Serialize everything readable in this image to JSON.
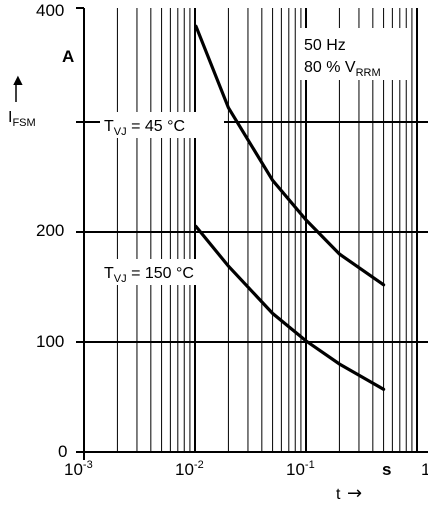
{
  "chart_data": {
    "type": "line",
    "title": "",
    "x_scale": "log",
    "xlim": [
      0.001,
      1
    ],
    "ylim": [
      0,
      400
    ],
    "grid": true,
    "x_ticks": [
      {
        "value": 0.001,
        "base": "10",
        "exp": "-3"
      },
      {
        "value": 0.01,
        "base": "10",
        "exp": "-2"
      },
      {
        "value": 0.1,
        "base": "10",
        "exp": "-1"
      },
      {
        "value": 1,
        "base": "1",
        "exp": ""
      }
    ],
    "y_ticks": [
      "0",
      "100",
      "200",
      "400"
    ],
    "x_unit": "s",
    "y_unit": "A",
    "ylabel": {
      "main": "I",
      "sub": "FSM"
    },
    "xlabel": {
      "main": "t",
      "arrow": "→"
    },
    "conditions": {
      "line1": "50 Hz",
      "line2_main": "80 % V",
      "line2_sub": "RRM"
    },
    "series": [
      {
        "label_main": "T",
        "label_sub": "VJ",
        "label_value": " = 45 °C",
        "points": [
          [
            0.0102,
            387
          ],
          [
            0.02,
            313
          ],
          [
            0.05,
            247
          ],
          [
            0.1,
            211
          ],
          [
            0.2,
            180
          ],
          [
            0.5,
            152
          ]
        ]
      },
      {
        "label_main": "T",
        "label_sub": "VJ",
        "label_value": " = 150 °C",
        "points": [
          [
            0.0102,
            205
          ],
          [
            0.02,
            169
          ],
          [
            0.05,
            126
          ],
          [
            0.1,
            101
          ],
          [
            0.2,
            80
          ],
          [
            0.5,
            57
          ]
        ]
      }
    ]
  }
}
